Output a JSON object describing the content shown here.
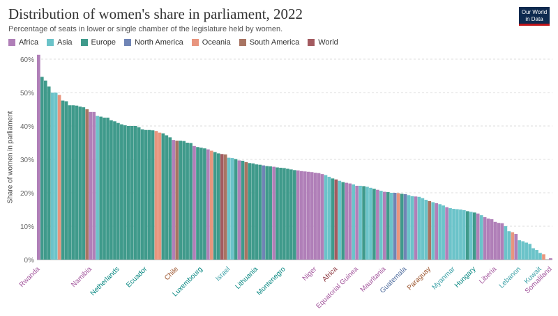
{
  "header": {
    "title": "Distribution of women's share in parliament, 2022",
    "subtitle": "Percentage of seats in lower or single chamber of the legislature held by women.",
    "logo_line1": "Our World",
    "logo_line2": "in Data"
  },
  "legend": [
    {
      "name": "Africa",
      "color": "#a2559c"
    },
    {
      "name": "Asia",
      "color": "#00847e"
    },
    {
      "name": "Europe",
      "color": "#4c6a9c"
    },
    {
      "name": "North America",
      "color": "#e56e5a"
    },
    {
      "name": "Oceania",
      "color": "#9a5129"
    },
    {
      "name": "South America",
      "color": "#883039"
    },
    {
      "name": "World",
      "color": "#6d3e91"
    }
  ],
  "colors": {
    "Africa": "#b07fb8",
    "Asia": "#6bc3c9",
    "Europe": "#3f9a8b",
    "North America": "#6f84b5",
    "Oceania": "#e8957e",
    "South America": "#a87462",
    "World": "#a35a5f"
  },
  "label_colors": {
    "Africa": "#a2559c",
    "Asia": "#3aa0a6",
    "Europe": "#00847e",
    "North America": "#4c6a9c",
    "Oceania": "#c4523e",
    "South America": "#9a5129",
    "World": "#883039"
  },
  "chart_data": {
    "type": "bar",
    "ylabel": "Share of women in parliament",
    "ylim": [
      0,
      62
    ],
    "yticks": [
      0,
      10,
      20,
      30,
      40,
      50,
      60
    ],
    "ytick_labels": [
      "0%",
      "10%",
      "20%",
      "30%",
      "40%",
      "50%",
      "60%"
    ],
    "grid": true,
    "legend_position": "top-left",
    "bars": [
      {
        "v": 61.3,
        "r": "Africa",
        "label": "Rwanda"
      },
      {
        "v": 54.7,
        "r": "Europe"
      },
      {
        "v": 53.6,
        "r": "Europe"
      },
      {
        "v": 51.8,
        "r": "Europe"
      },
      {
        "v": 50.0,
        "r": "Asia"
      },
      {
        "v": 50.0,
        "r": "Asia"
      },
      {
        "v": 49.3,
        "r": "Oceania"
      },
      {
        "v": 47.6,
        "r": "Europe"
      },
      {
        "v": 47.4,
        "r": "Europe"
      },
      {
        "v": 46.2,
        "r": "Europe"
      },
      {
        "v": 46.2,
        "r": "Europe"
      },
      {
        "v": 46.1,
        "r": "Europe"
      },
      {
        "v": 45.8,
        "r": "Europe"
      },
      {
        "v": 45.6,
        "r": "Europe"
      },
      {
        "v": 45.0,
        "r": "South America"
      },
      {
        "v": 44.2,
        "r": "Africa",
        "label": "Namibia"
      },
      {
        "v": 44.2,
        "r": "Africa"
      },
      {
        "v": 43.0,
        "r": "Asia"
      },
      {
        "v": 42.8,
        "r": "Europe"
      },
      {
        "v": 42.5,
        "r": "Europe"
      },
      {
        "v": 42.5,
        "r": "Europe"
      },
      {
        "v": 41.7,
        "r": "Europe"
      },
      {
        "v": 41.4,
        "r": "Europe"
      },
      {
        "v": 40.9,
        "r": "Europe",
        "label": "Netherlands"
      },
      {
        "v": 40.5,
        "r": "Europe"
      },
      {
        "v": 40.2,
        "r": "Europe"
      },
      {
        "v": 40.0,
        "r": "Europe"
      },
      {
        "v": 40.0,
        "r": "Europe"
      },
      {
        "v": 40.0,
        "r": "Europe"
      },
      {
        "v": 39.6,
        "r": "Europe"
      },
      {
        "v": 39.0,
        "r": "Europe"
      },
      {
        "v": 38.8,
        "r": "Europe",
        "label": "Ecuador"
      },
      {
        "v": 38.8,
        "r": "Europe"
      },
      {
        "v": 38.7,
        "r": "Europe"
      },
      {
        "v": 38.5,
        "r": "Oceania"
      },
      {
        "v": 38.0,
        "r": "Oceania"
      },
      {
        "v": 37.8,
        "r": "Europe"
      },
      {
        "v": 37.2,
        "r": "Europe"
      },
      {
        "v": 36.6,
        "r": "Europe"
      },
      {
        "v": 35.8,
        "r": "Africa"
      },
      {
        "v": 35.6,
        "r": "South America",
        "label": "Chile"
      },
      {
        "v": 35.6,
        "r": "Europe"
      },
      {
        "v": 35.5,
        "r": "Europe"
      },
      {
        "v": 35.0,
        "r": "Europe"
      },
      {
        "v": 34.9,
        "r": "Europe"
      },
      {
        "v": 34.0,
        "r": "Africa"
      },
      {
        "v": 33.7,
        "r": "Europe"
      },
      {
        "v": 33.5,
        "r": "Europe",
        "label": "Luxembourg"
      },
      {
        "v": 33.3,
        "r": "Europe"
      },
      {
        "v": 33.0,
        "r": "Africa"
      },
      {
        "v": 32.6,
        "r": "Oceania"
      },
      {
        "v": 32.2,
        "r": "Europe"
      },
      {
        "v": 31.8,
        "r": "Europe"
      },
      {
        "v": 31.6,
        "r": "World"
      },
      {
        "v": 31.5,
        "r": "South America"
      },
      {
        "v": 30.5,
        "r": "Asia",
        "label": "Israel"
      },
      {
        "v": 30.4,
        "r": "Asia"
      },
      {
        "v": 30.1,
        "r": "Europe"
      },
      {
        "v": 29.7,
        "r": "Africa"
      },
      {
        "v": 29.6,
        "r": "Europe"
      },
      {
        "v": 29.2,
        "r": "South America"
      },
      {
        "v": 28.9,
        "r": "Europe"
      },
      {
        "v": 28.8,
        "r": "Europe"
      },
      {
        "v": 28.5,
        "r": "Europe",
        "label": "Lithuania"
      },
      {
        "v": 28.4,
        "r": "Europe"
      },
      {
        "v": 28.2,
        "r": "North America"
      },
      {
        "v": 28.0,
        "r": "Europe"
      },
      {
        "v": 27.9,
        "r": "Europe"
      },
      {
        "v": 27.8,
        "r": "Africa"
      },
      {
        "v": 27.6,
        "r": "Europe"
      },
      {
        "v": 27.5,
        "r": "Europe"
      },
      {
        "v": 27.4,
        "r": "Europe",
        "label": "Montenegro"
      },
      {
        "v": 27.2,
        "r": "Europe"
      },
      {
        "v": 27.0,
        "r": "Europe"
      },
      {
        "v": 26.8,
        "r": "Europe"
      },
      {
        "v": 26.7,
        "r": "Africa"
      },
      {
        "v": 26.5,
        "r": "Africa"
      },
      {
        "v": 26.4,
        "r": "Africa"
      },
      {
        "v": 26.3,
        "r": "Africa"
      },
      {
        "v": 26.2,
        "r": "Africa"
      },
      {
        "v": 26.0,
        "r": "Africa",
        "label": "Niger"
      },
      {
        "v": 25.9,
        "r": "Africa"
      },
      {
        "v": 25.6,
        "r": "Africa"
      },
      {
        "v": 25.3,
        "r": "Asia"
      },
      {
        "v": 24.8,
        "r": "Asia"
      },
      {
        "v": 24.3,
        "r": "Europe"
      },
      {
        "v": 24.0,
        "r": "World",
        "label": "Africa"
      },
      {
        "v": 23.6,
        "r": "Asia"
      },
      {
        "v": 23.2,
        "r": "Europe"
      },
      {
        "v": 23.0,
        "r": "Africa"
      },
      {
        "v": 22.8,
        "r": "Africa"
      },
      {
        "v": 22.5,
        "r": "Asia"
      },
      {
        "v": 22.1,
        "r": "Africa",
        "label": "Equatorial Guinea"
      },
      {
        "v": 22.1,
        "r": "Asia"
      },
      {
        "v": 22.0,
        "r": "Europe"
      },
      {
        "v": 21.8,
        "r": "Asia"
      },
      {
        "v": 21.5,
        "r": "Asia"
      },
      {
        "v": 21.2,
        "r": "Europe"
      },
      {
        "v": 20.9,
        "r": "Africa"
      },
      {
        "v": 20.6,
        "r": "Asia"
      },
      {
        "v": 20.3,
        "r": "Africa",
        "label": "Mauritania"
      },
      {
        "v": 20.2,
        "r": "Europe"
      },
      {
        "v": 20.0,
        "r": "Asia"
      },
      {
        "v": 20.0,
        "r": "North America"
      },
      {
        "v": 19.9,
        "r": "Oceania"
      },
      {
        "v": 19.7,
        "r": "Europe"
      },
      {
        "v": 19.6,
        "r": "North America",
        "label": "Guatemala"
      },
      {
        "v": 19.3,
        "r": "Asia"
      },
      {
        "v": 19.0,
        "r": "Asia"
      },
      {
        "v": 18.9,
        "r": "Africa"
      },
      {
        "v": 18.8,
        "r": "Asia"
      },
      {
        "v": 18.4,
        "r": "Asia"
      },
      {
        "v": 17.9,
        "r": "Asia"
      },
      {
        "v": 17.5,
        "r": "South America",
        "label": "Paraguay"
      },
      {
        "v": 17.2,
        "r": "Asia"
      },
      {
        "v": 16.9,
        "r": "Africa"
      },
      {
        "v": 16.6,
        "r": "Asia"
      },
      {
        "v": 16.2,
        "r": "Asia"
      },
      {
        "v": 15.7,
        "r": "Africa"
      },
      {
        "v": 15.4,
        "r": "Asia"
      },
      {
        "v": 15.2,
        "r": "Asia",
        "label": "Myanmar"
      },
      {
        "v": 15.1,
        "r": "Asia"
      },
      {
        "v": 15.0,
        "r": "Asia"
      },
      {
        "v": 14.8,
        "r": "Asia"
      },
      {
        "v": 14.5,
        "r": "Europe"
      },
      {
        "v": 14.3,
        "r": "Asia"
      },
      {
        "v": 14.1,
        "r": "Europe",
        "label": "Hungary"
      },
      {
        "v": 13.8,
        "r": "Africa"
      },
      {
        "v": 13.3,
        "r": "Asia"
      },
      {
        "v": 12.7,
        "r": "Africa"
      },
      {
        "v": 12.3,
        "r": "Africa"
      },
      {
        "v": 12.1,
        "r": "Africa"
      },
      {
        "v": 11.3,
        "r": "Africa",
        "label": "Liberia"
      },
      {
        "v": 11.0,
        "r": "Africa"
      },
      {
        "v": 10.9,
        "r": "Africa"
      },
      {
        "v": 10.0,
        "r": "Asia"
      },
      {
        "v": 8.5,
        "r": "Asia"
      },
      {
        "v": 8.2,
        "r": "Oceania"
      },
      {
        "v": 7.7,
        "r": "Africa"
      },
      {
        "v": 5.8,
        "r": "Asia",
        "label": "Lebanon"
      },
      {
        "v": 5.5,
        "r": "Asia"
      },
      {
        "v": 5.1,
        "r": "Asia"
      },
      {
        "v": 4.7,
        "r": "Asia"
      },
      {
        "v": 3.4,
        "r": "Asia"
      },
      {
        "v": 2.9,
        "r": "Asia"
      },
      {
        "v": 2.0,
        "r": "Asia",
        "label": "Kuwait"
      },
      {
        "v": 1.6,
        "r": "Oceania"
      },
      {
        "v": 0.0,
        "r": "Asia"
      },
      {
        "v": 0.4,
        "r": "Africa",
        "label": "Somaliland"
      }
    ]
  }
}
